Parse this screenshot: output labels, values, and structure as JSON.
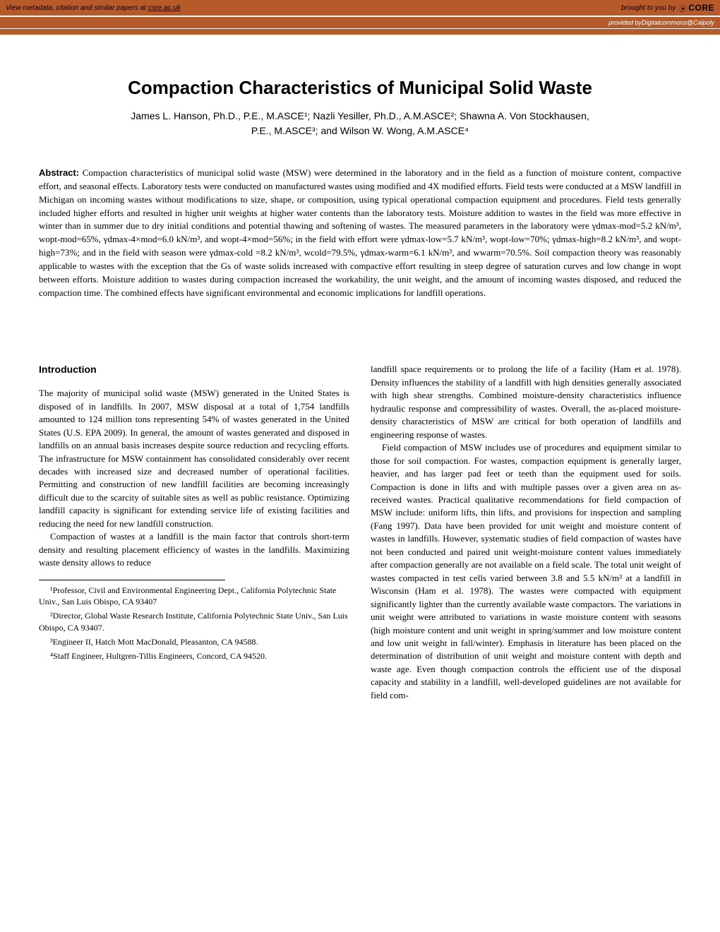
{
  "banner": {
    "left_text": "View metadata, citation and similar papers at ",
    "left_link": "core.ac.uk",
    "right_text": "brought to you by",
    "core_label": "CORE",
    "provided_by": "provided by ",
    "source": "Digitalcommons@Calpoly"
  },
  "title": "Compaction Characteristics of Municipal Solid Waste",
  "authors_line1": "James L. Hanson, Ph.D., P.E., M.ASCE¹; Nazli Yesiller, Ph.D., A.M.ASCE²; Shawna A. Von Stockhausen,",
  "authors_line2": "P.E., M.ASCE³; and Wilson W. Wong, A.M.ASCE⁴",
  "abstract_label": "Abstract:",
  "abstract_text": " Compaction characteristics of municipal solid waste (MSW) were determined in the laboratory and in the field as a function of moisture content, compactive effort, and seasonal effects. Laboratory tests were conducted on manufactured wastes using modified and 4X modified efforts. Field tests were conducted at a MSW landfill in Michigan on incoming wastes without modifications to size, shape, or composition, using typical operational compaction equipment and procedures. Field tests generally included higher efforts and resulted in higher unit weights at higher water contents than the laboratory tests. Moisture addition to wastes in the field was more effective in winter than in summer due to dry initial conditions and potential thawing and softening of wastes. The measured parameters in the laboratory were γdmax-mod=5.2 kN/m³, wopt-mod=65%, γdmax-4×mod=6.0 kN/m³, and wopt-4×mod=56%; in the field with effort were γdmax-low=5.7 kN/m³, wopt-low=70%; γdmax-high=8.2 kN/m³, and wopt-high=73%; and in the field with season were γdmax-cold =8.2 kN/m³, wcold=79.5%, γdmax-warm=6.1 kN/m³, and wwarm=70.5%. Soil compaction theory was reasonably applicable to wastes with the exception that the Gs of waste solids increased with compactive effort resulting in steep degree of saturation curves and low change in wopt between efforts. Moisture addition to wastes during compaction increased the workability, the unit weight, and the amount of incoming wastes disposed, and reduced the compaction time. The combined effects have significant environmental and economic implications for landfill operations.",
  "intro_heading": "Introduction",
  "left_col_p1": "The majority of municipal solid waste (MSW) generated in the United States is disposed of in landfills. In 2007, MSW disposal at a total of 1,754 landfills amounted to 124 million tons representing 54% of wastes generated in the United States (U.S. EPA 2009). In general, the amount of wastes generated and disposed in landfills on an annual basis increases despite source reduction and recycling efforts. The infrastructure for MSW containment has consolidated considerably over recent decades with increased size and decreased number of operational facilities. Permitting and construction of new landfill facilities are becoming increasingly difficult due to the scarcity of suitable sites as well as public resistance. Optimizing landfill capacity is significant for extending service life of existing facilities and reducing the need for new landfill construction.",
  "left_col_p2": "Compaction of wastes at a landfill is the main factor that controls short-term density and resulting placement efficiency of wastes in the landfills. Maximizing waste density allows to reduce",
  "footnotes": {
    "f1": "¹Professor, Civil and Environmental Engineering Dept., California Polytechnic State Univ., San Luis Obispo, CA 93407",
    "f2": "²Director, Global Waste Research Institute, California Polytechnic State Univ., San Luis Obispo, CA 93407.",
    "f3": "³Engineer II, Hatch Mott MacDonald, Pleasanton, CA 94588.",
    "f4": "⁴Staff Engineer, Hultgren-Tillis Engineers, Concord, CA 94520."
  },
  "right_col_p1": "landfill space requirements or to prolong the life of a facility (Ham et al. 1978). Density influences the stability of a landfill with high densities generally associated with high shear strengths. Combined moisture-density characteristics influence hydraulic response and compressibility of wastes. Overall, the as-placed moisture-density characteristics of MSW are critical for both operation of landfills and engineering response of wastes.",
  "right_col_p2": "Field compaction of MSW includes use of procedures and equipment similar to those for soil compaction. For wastes, compaction equipment is generally larger, heavier, and has larger pad feet or teeth than the equipment used for soils. Compaction is done in lifts and with multiple passes over a given area on as-received wastes. Practical qualitative recommendations for field compaction of MSW include: uniform lifts, thin lifts, and provisions for inspection and sampling (Fang 1997). Data have been provided for unit weight and moisture content of wastes in landfills. However, systematic studies of field compaction of wastes have not been conducted and paired unit weight-moisture content values immediately after compaction generally are not available on a field scale. The total unit weight of wastes compacted in test cells varied between 3.8 and 5.5 kN/m³ at a landfill in Wisconsin (Ham et al. 1978). The wastes were compacted with equipment significantly lighter than the currently available waste compactors. The variations in unit weight were attributed to variations in waste moisture content with seasons (high moisture content and unit weight in spring/summer and low moisture content and low unit weight in fall/winter). Emphasis in literature has been placed on the determination of distribution of unit weight and moisture content with depth and waste age. Even though compaction controls the efficient use of the disposal capacity and stability in a landfill, well-developed guidelines are not available for field com-"
}
